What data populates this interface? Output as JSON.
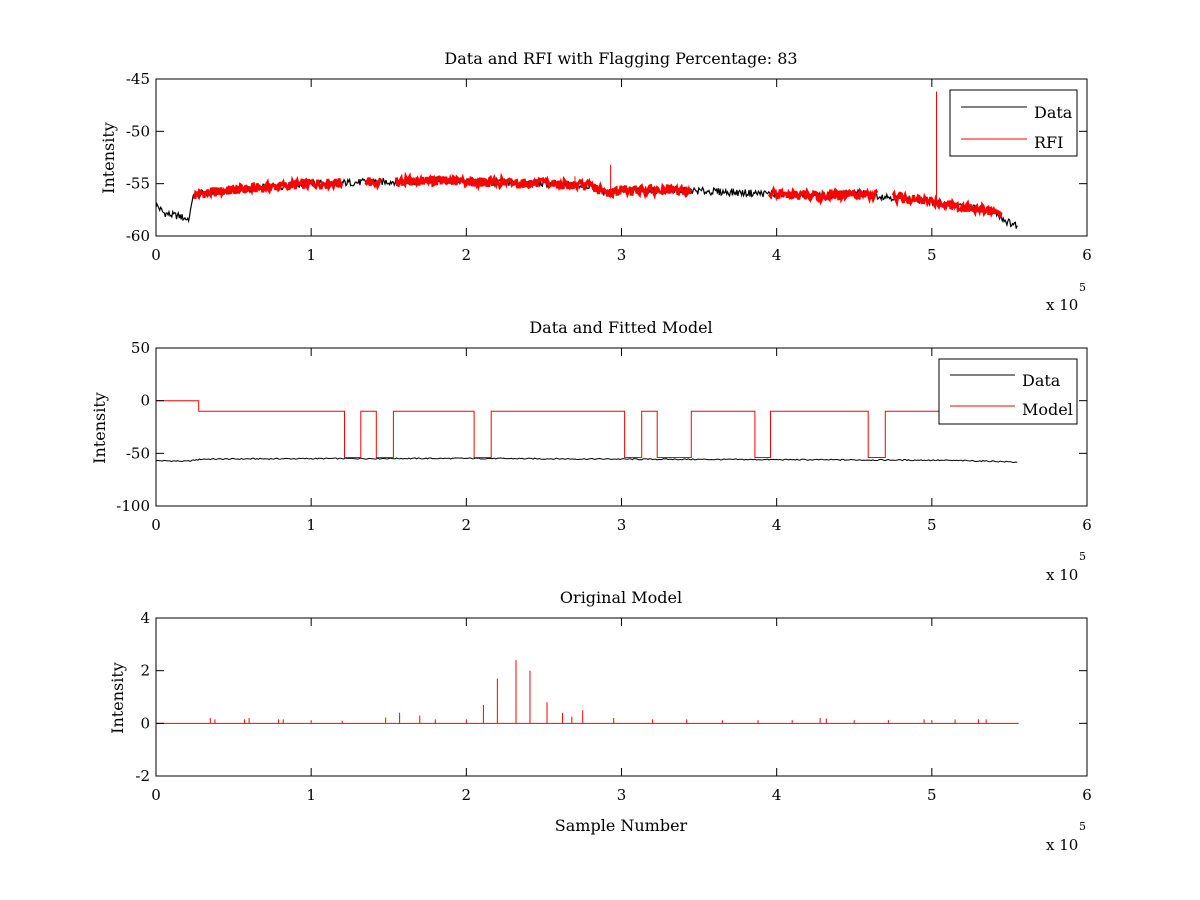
{
  "chart_data": [
    {
      "type": "line",
      "title": "Data and RFI with Flagging Percentage: 83",
      "xlabel": "",
      "ylabel": "Intensity",
      "xlim": [
        0,
        600000
      ],
      "ylim": [
        -60,
        -45
      ],
      "xticks": [
        0,
        1,
        2,
        3,
        4,
        5,
        6
      ],
      "yticks": [
        -60,
        -55,
        -50,
        -45
      ],
      "x_exponent_label": "x 10",
      "x_exponent": "5",
      "legend": {
        "placement": "top-right",
        "entries": [
          "Data",
          "RFI"
        ]
      },
      "colors": {
        "Data": "#000000",
        "RFI": "#ff0000"
      },
      "series": [
        {
          "name": "Data",
          "x": [
            0,
            5000,
            10000,
            15000,
            20000,
            22000,
            23000,
            26000,
            50000,
            100000,
            150000,
            180000,
            200000,
            250000,
            280000,
            290000,
            300000,
            350000,
            400000,
            430000,
            450000,
            500000,
            520000,
            540000,
            548000,
            555000
          ],
          "y": [
            -57.0,
            -57.8,
            -58.0,
            -58.1,
            -58.4,
            -58.2,
            -56.5,
            -56.0,
            -55.6,
            -55.0,
            -54.8,
            -54.7,
            -54.8,
            -55.0,
            -55.2,
            -55.9,
            -55.6,
            -55.7,
            -56.0,
            -56.2,
            -55.9,
            -56.7,
            -57.2,
            -57.6,
            -58.6,
            -59.0
          ]
        },
        {
          "name": "RFI",
          "segments": [
            [
              25000,
              120000
            ],
            [
              135000,
              145000
            ],
            [
              155000,
              345000
            ],
            [
              395000,
              465000
            ],
            [
              475000,
              545000
            ]
          ],
          "spikes": [
            {
              "x": 270000,
              "y": -54.3
            },
            {
              "x": 293000,
              "y": -53.2
            },
            {
              "x": 503000,
              "y": -46.2
            }
          ]
        }
      ]
    },
    {
      "type": "line",
      "title": "Data and Fitted Model",
      "xlabel": "",
      "ylabel": "Intensity",
      "xlim": [
        0,
        600000
      ],
      "ylim": [
        -100,
        50
      ],
      "xticks": [
        0,
        1,
        2,
        3,
        4,
        5,
        6
      ],
      "yticks": [
        -100,
        -50,
        0,
        50
      ],
      "x_exponent_label": "x 10",
      "x_exponent": "5",
      "legend": {
        "placement": "top-right",
        "entries": [
          "Data",
          "Model"
        ]
      },
      "colors": {
        "Data": "#000000",
        "Model": "#ff0000"
      },
      "series": [
        {
          "name": "Data",
          "x": [
            0,
            20000,
            30000,
            100000,
            200000,
            300000,
            400000,
            500000,
            540000,
            555000
          ],
          "y": [
            -57,
            -57.5,
            -55.5,
            -55,
            -54.8,
            -55.5,
            -56,
            -56.5,
            -57.5,
            -58.5
          ]
        },
        {
          "name": "Model",
          "x": [
            0,
            27500,
            27500,
            121500,
            121500,
            132000,
            132000,
            142000,
            142000,
            153000,
            153000,
            205000,
            205000,
            216000,
            216000,
            302000,
            302000,
            313000,
            313000,
            323000,
            323000,
            345000,
            345000,
            386000,
            386000,
            396000,
            396000,
            459000,
            459000,
            470000,
            470000,
            556000
          ],
          "y": [
            0,
            0,
            -10,
            -10,
            -54,
            -54,
            -10,
            -10,
            -54,
            -54,
            -10,
            -10,
            -54,
            -54,
            -10,
            -10,
            -54,
            -54,
            -10,
            -10,
            -54,
            -54,
            -10,
            -10,
            -54,
            -54,
            -10,
            -10,
            -54,
            -54,
            -10,
            -10
          ]
        }
      ]
    },
    {
      "type": "line",
      "title": "Original Model",
      "xlabel": "Sample Number",
      "ylabel": "Intensity",
      "xlim": [
        0,
        600000
      ],
      "ylim": [
        -2,
        4
      ],
      "xticks": [
        0,
        1,
        2,
        3,
        4,
        5,
        6
      ],
      "yticks": [
        -2,
        0,
        2,
        4
      ],
      "x_exponent_label": "x 10",
      "x_exponent": "5",
      "colors": {
        "Model": "#ff0000"
      },
      "series": [
        {
          "baseline": 0,
          "x_end": 556000,
          "spikes": [
            {
              "x": 35000,
              "y": 0.2
            },
            {
              "x": 38000,
              "y": 0.15
            },
            {
              "x": 57000,
              "y": 0.15
            },
            {
              "x": 60000,
              "y": 0.2
            },
            {
              "x": 79000,
              "y": 0.15
            },
            {
              "x": 82000,
              "y": 0.15
            },
            {
              "x": 100000,
              "y": 0.12
            },
            {
              "x": 120000,
              "y": 0.1
            },
            {
              "x": 148000,
              "y": 0.22
            },
            {
              "x": 157000,
              "y": 0.4
            },
            {
              "x": 170000,
              "y": 0.3
            },
            {
              "x": 180000,
              "y": 0.15
            },
            {
              "x": 200000,
              "y": 0.15
            },
            {
              "x": 211000,
              "y": 0.7
            },
            {
              "x": 220000,
              "y": 1.7
            },
            {
              "x": 232000,
              "y": 2.4
            },
            {
              "x": 241000,
              "y": 2.0
            },
            {
              "x": 252000,
              "y": 0.8
            },
            {
              "x": 262000,
              "y": 0.4
            },
            {
              "x": 268000,
              "y": 0.25
            },
            {
              "x": 275000,
              "y": 0.5
            },
            {
              "x": 295000,
              "y": 0.2
            },
            {
              "x": 320000,
              "y": 0.15
            },
            {
              "x": 342000,
              "y": 0.15
            },
            {
              "x": 365000,
              "y": 0.12
            },
            {
              "x": 388000,
              "y": 0.12
            },
            {
              "x": 410000,
              "y": 0.12
            },
            {
              "x": 428000,
              "y": 0.2
            },
            {
              "x": 432000,
              "y": 0.18
            },
            {
              "x": 450000,
              "y": 0.12
            },
            {
              "x": 472000,
              "y": 0.12
            },
            {
              "x": 495000,
              "y": 0.15
            },
            {
              "x": 500000,
              "y": 0.12
            },
            {
              "x": 515000,
              "y": 0.15
            },
            {
              "x": 530000,
              "y": 0.15
            },
            {
              "x": 535000,
              "y": 0.15
            }
          ]
        }
      ]
    }
  ]
}
